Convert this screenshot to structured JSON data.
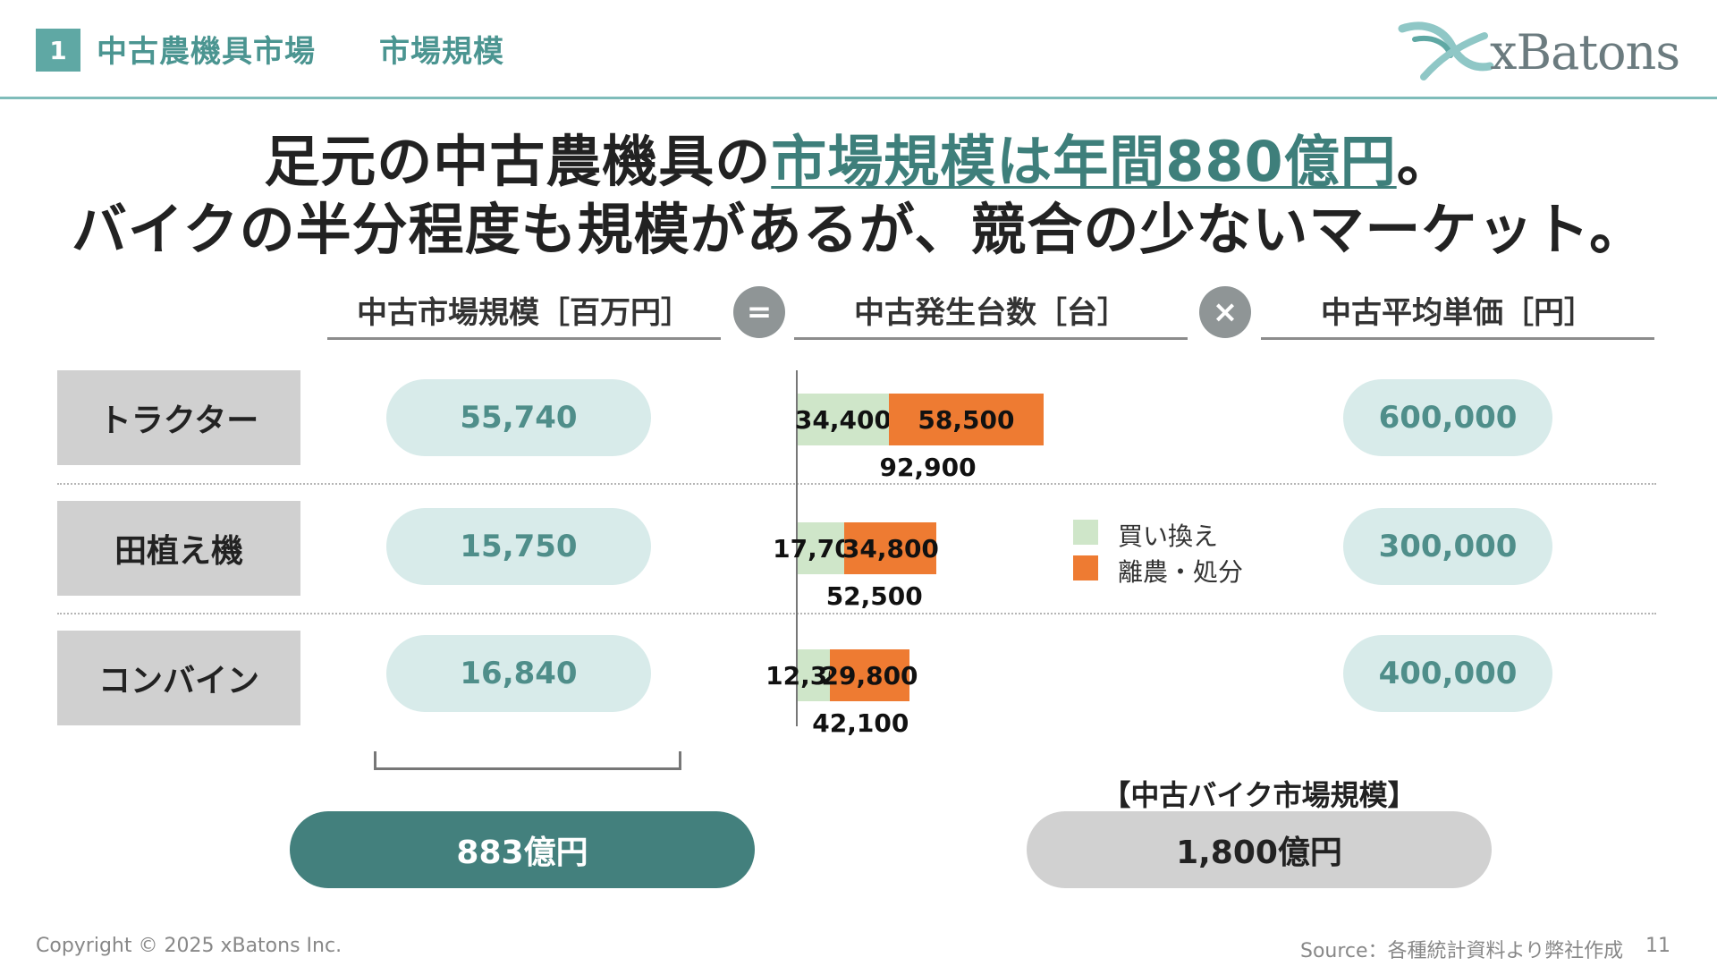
{
  "header": {
    "section_number": "1",
    "section_title": "中古農機具市場",
    "section_subtitle": "市場規模",
    "logo_text": "xBatons"
  },
  "headline": {
    "line1_prefix": "足元の中古農機具の",
    "line1_highlight": "市場規模は年間880億円",
    "line1_suffix": "。",
    "line2": "バイクの半分程度も規模があるが、競合の少ないマーケット。"
  },
  "columns": {
    "market_size": "中古市場規模［百万円］",
    "units": "中古発生台数［台］",
    "avg_price": "中古平均単価［円］",
    "equals_symbol": "=",
    "times_symbol": "×"
  },
  "rows": [
    {
      "label": "トラクター",
      "market_size": "55,740",
      "replace": "34,400",
      "retire": "58,500",
      "total": "92,900",
      "avg_price": "600,000"
    },
    {
      "label": "田植え機",
      "market_size": "15,750",
      "replace": "17,700",
      "retire": "34,800",
      "total": "52,500",
      "avg_price": "300,000"
    },
    {
      "label": "コンバイン",
      "market_size": "16,840",
      "replace": "12,300",
      "retire": "29,800",
      "total": "42,100",
      "avg_price": "400,000"
    }
  ],
  "legend": {
    "replace": "買い換え",
    "retire": "離農・処分"
  },
  "colors": {
    "replace": "#cfe6c9",
    "retire": "#ee7b32",
    "accent": "#43807d",
    "pill": "#d8ebea"
  },
  "chart_data": {
    "type": "bar",
    "stacked": true,
    "orientation": "horizontal",
    "categories": [
      "トラクター",
      "田植え機",
      "コンバイン"
    ],
    "series": [
      {
        "name": "買い換え",
        "values": [
          34400,
          17700,
          12300
        ]
      },
      {
        "name": "離農・処分",
        "values": [
          58500,
          34800,
          29800
        ]
      }
    ],
    "totals": [
      92900,
      52500,
      42100
    ],
    "title": "中古発生台数［台］"
  },
  "summary": {
    "total": "883億円",
    "bike_title": "【中古バイク市場規模】",
    "bike_value": "1,800億円"
  },
  "footer": {
    "copyright": "Copyright © 2025 xBatons Inc.",
    "source": "Source：各種統計資料より弊社作成",
    "page_number": "11"
  }
}
